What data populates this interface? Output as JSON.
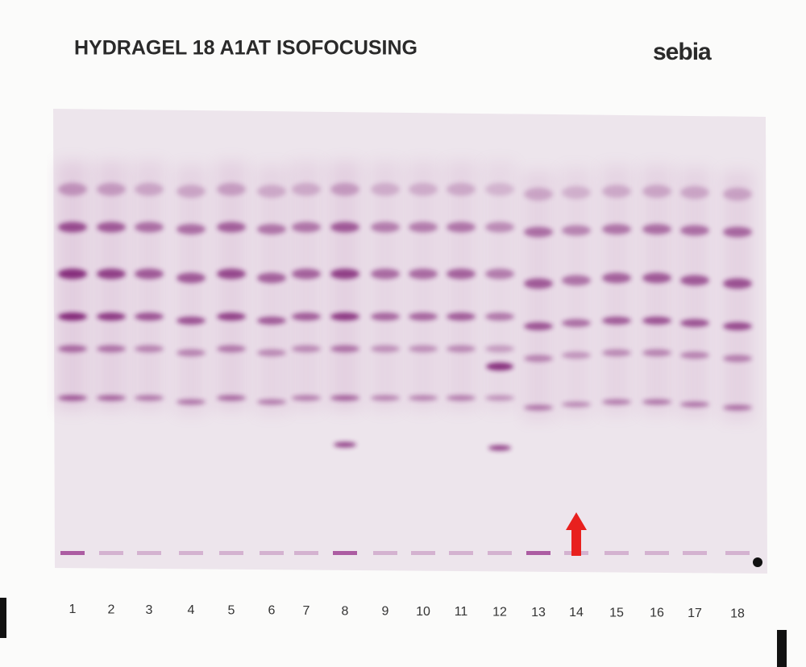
{
  "header": {
    "title": "HYDRAGEL 18 A1AT ISOFOCUSING",
    "brand": "sebia"
  },
  "lanes": [
    "1",
    "2",
    "3",
    "4",
    "5",
    "6",
    "7",
    "8",
    "9",
    "10",
    "11",
    "12",
    "13",
    "14",
    "15",
    "16",
    "17",
    "18"
  ]
}
